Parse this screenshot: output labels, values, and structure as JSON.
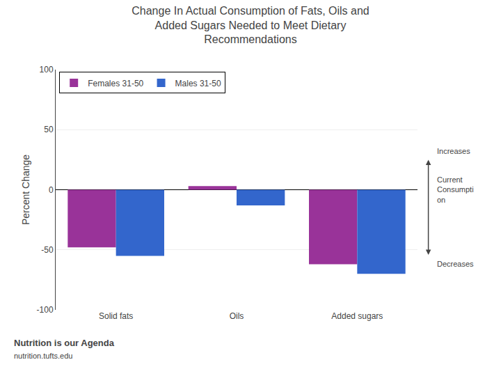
{
  "chart_data": {
    "type": "bar",
    "title": "Change In Actual Consumption of Fats, Oils and\nAdded Sugars Needed to Meet Dietary\nRecommendations",
    "ylabel": "Percent Change",
    "categories": [
      "Solid fats",
      "Oils",
      "Added sugars"
    ],
    "series": [
      {
        "name": "Females 31-50",
        "color": "#993399",
        "values": [
          -48,
          3,
          -62
        ]
      },
      {
        "name": "Males 31-50",
        "color": "#3366CC",
        "values": [
          -55,
          -13,
          -70
        ]
      }
    ],
    "ylim": [
      -100,
      100
    ],
    "yticks": [
      -100,
      -50,
      0,
      50,
      100
    ],
    "grid": true,
    "legend": "upper left",
    "annotations": [
      {
        "text": "Increases",
        "y": 25
      },
      {
        "text": "Current\nConsumpti\non",
        "y": 0
      },
      {
        "text": "Decreases",
        "y": -55
      }
    ],
    "footer": [
      "Nutrition is our Agenda",
      "nutrition.tufts.edu"
    ]
  }
}
